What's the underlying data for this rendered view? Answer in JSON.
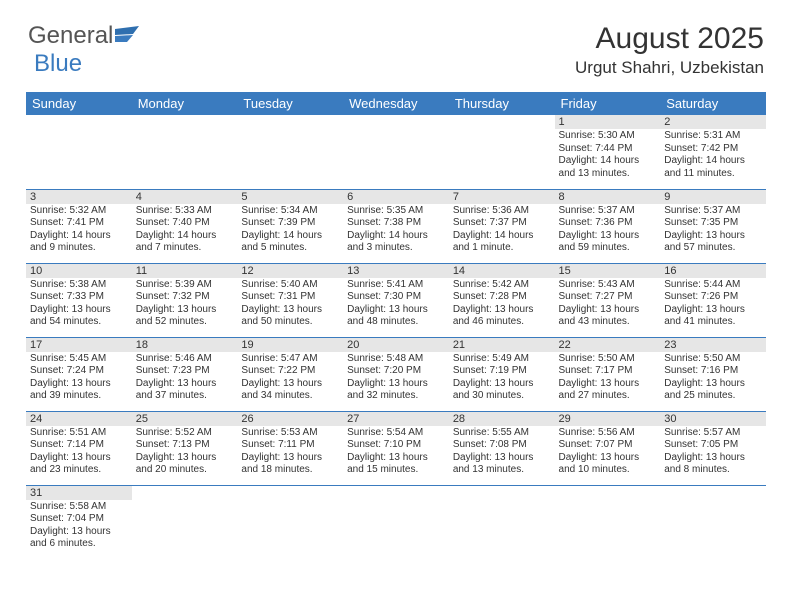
{
  "logo": {
    "text1": "General",
    "text2": "Blue"
  },
  "title": "August 2025",
  "location": "Urgut Shahri, Uzbekistan",
  "colors": {
    "header_bg": "#3a7bbf",
    "header_text": "#ffffff",
    "daynum_bg": "#e6e6e6",
    "cell_border": "#3a7bbf",
    "body_text": "#333333"
  },
  "weekdays": [
    "Sunday",
    "Monday",
    "Tuesday",
    "Wednesday",
    "Thursday",
    "Friday",
    "Saturday"
  ],
  "weeks": [
    [
      {
        "n": "",
        "sr": "",
        "ss": "",
        "dl": ""
      },
      {
        "n": "",
        "sr": "",
        "ss": "",
        "dl": ""
      },
      {
        "n": "",
        "sr": "",
        "ss": "",
        "dl": ""
      },
      {
        "n": "",
        "sr": "",
        "ss": "",
        "dl": ""
      },
      {
        "n": "",
        "sr": "",
        "ss": "",
        "dl": ""
      },
      {
        "n": "1",
        "sr": "Sunrise: 5:30 AM",
        "ss": "Sunset: 7:44 PM",
        "dl": "Daylight: 14 hours and 13 minutes."
      },
      {
        "n": "2",
        "sr": "Sunrise: 5:31 AM",
        "ss": "Sunset: 7:42 PM",
        "dl": "Daylight: 14 hours and 11 minutes."
      }
    ],
    [
      {
        "n": "3",
        "sr": "Sunrise: 5:32 AM",
        "ss": "Sunset: 7:41 PM",
        "dl": "Daylight: 14 hours and 9 minutes."
      },
      {
        "n": "4",
        "sr": "Sunrise: 5:33 AM",
        "ss": "Sunset: 7:40 PM",
        "dl": "Daylight: 14 hours and 7 minutes."
      },
      {
        "n": "5",
        "sr": "Sunrise: 5:34 AM",
        "ss": "Sunset: 7:39 PM",
        "dl": "Daylight: 14 hours and 5 minutes."
      },
      {
        "n": "6",
        "sr": "Sunrise: 5:35 AM",
        "ss": "Sunset: 7:38 PM",
        "dl": "Daylight: 14 hours and 3 minutes."
      },
      {
        "n": "7",
        "sr": "Sunrise: 5:36 AM",
        "ss": "Sunset: 7:37 PM",
        "dl": "Daylight: 14 hours and 1 minute."
      },
      {
        "n": "8",
        "sr": "Sunrise: 5:37 AM",
        "ss": "Sunset: 7:36 PM",
        "dl": "Daylight: 13 hours and 59 minutes."
      },
      {
        "n": "9",
        "sr": "Sunrise: 5:37 AM",
        "ss": "Sunset: 7:35 PM",
        "dl": "Daylight: 13 hours and 57 minutes."
      }
    ],
    [
      {
        "n": "10",
        "sr": "Sunrise: 5:38 AM",
        "ss": "Sunset: 7:33 PM",
        "dl": "Daylight: 13 hours and 54 minutes."
      },
      {
        "n": "11",
        "sr": "Sunrise: 5:39 AM",
        "ss": "Sunset: 7:32 PM",
        "dl": "Daylight: 13 hours and 52 minutes."
      },
      {
        "n": "12",
        "sr": "Sunrise: 5:40 AM",
        "ss": "Sunset: 7:31 PM",
        "dl": "Daylight: 13 hours and 50 minutes."
      },
      {
        "n": "13",
        "sr": "Sunrise: 5:41 AM",
        "ss": "Sunset: 7:30 PM",
        "dl": "Daylight: 13 hours and 48 minutes."
      },
      {
        "n": "14",
        "sr": "Sunrise: 5:42 AM",
        "ss": "Sunset: 7:28 PM",
        "dl": "Daylight: 13 hours and 46 minutes."
      },
      {
        "n": "15",
        "sr": "Sunrise: 5:43 AM",
        "ss": "Sunset: 7:27 PM",
        "dl": "Daylight: 13 hours and 43 minutes."
      },
      {
        "n": "16",
        "sr": "Sunrise: 5:44 AM",
        "ss": "Sunset: 7:26 PM",
        "dl": "Daylight: 13 hours and 41 minutes."
      }
    ],
    [
      {
        "n": "17",
        "sr": "Sunrise: 5:45 AM",
        "ss": "Sunset: 7:24 PM",
        "dl": "Daylight: 13 hours and 39 minutes."
      },
      {
        "n": "18",
        "sr": "Sunrise: 5:46 AM",
        "ss": "Sunset: 7:23 PM",
        "dl": "Daylight: 13 hours and 37 minutes."
      },
      {
        "n": "19",
        "sr": "Sunrise: 5:47 AM",
        "ss": "Sunset: 7:22 PM",
        "dl": "Daylight: 13 hours and 34 minutes."
      },
      {
        "n": "20",
        "sr": "Sunrise: 5:48 AM",
        "ss": "Sunset: 7:20 PM",
        "dl": "Daylight: 13 hours and 32 minutes."
      },
      {
        "n": "21",
        "sr": "Sunrise: 5:49 AM",
        "ss": "Sunset: 7:19 PM",
        "dl": "Daylight: 13 hours and 30 minutes."
      },
      {
        "n": "22",
        "sr": "Sunrise: 5:50 AM",
        "ss": "Sunset: 7:17 PM",
        "dl": "Daylight: 13 hours and 27 minutes."
      },
      {
        "n": "23",
        "sr": "Sunrise: 5:50 AM",
        "ss": "Sunset: 7:16 PM",
        "dl": "Daylight: 13 hours and 25 minutes."
      }
    ],
    [
      {
        "n": "24",
        "sr": "Sunrise: 5:51 AM",
        "ss": "Sunset: 7:14 PM",
        "dl": "Daylight: 13 hours and 23 minutes."
      },
      {
        "n": "25",
        "sr": "Sunrise: 5:52 AM",
        "ss": "Sunset: 7:13 PM",
        "dl": "Daylight: 13 hours and 20 minutes."
      },
      {
        "n": "26",
        "sr": "Sunrise: 5:53 AM",
        "ss": "Sunset: 7:11 PM",
        "dl": "Daylight: 13 hours and 18 minutes."
      },
      {
        "n": "27",
        "sr": "Sunrise: 5:54 AM",
        "ss": "Sunset: 7:10 PM",
        "dl": "Daylight: 13 hours and 15 minutes."
      },
      {
        "n": "28",
        "sr": "Sunrise: 5:55 AM",
        "ss": "Sunset: 7:08 PM",
        "dl": "Daylight: 13 hours and 13 minutes."
      },
      {
        "n": "29",
        "sr": "Sunrise: 5:56 AM",
        "ss": "Sunset: 7:07 PM",
        "dl": "Daylight: 13 hours and 10 minutes."
      },
      {
        "n": "30",
        "sr": "Sunrise: 5:57 AM",
        "ss": "Sunset: 7:05 PM",
        "dl": "Daylight: 13 hours and 8 minutes."
      }
    ],
    [
      {
        "n": "31",
        "sr": "Sunrise: 5:58 AM",
        "ss": "Sunset: 7:04 PM",
        "dl": "Daylight: 13 hours and 6 minutes."
      },
      {
        "n": "",
        "sr": "",
        "ss": "",
        "dl": ""
      },
      {
        "n": "",
        "sr": "",
        "ss": "",
        "dl": ""
      },
      {
        "n": "",
        "sr": "",
        "ss": "",
        "dl": ""
      },
      {
        "n": "",
        "sr": "",
        "ss": "",
        "dl": ""
      },
      {
        "n": "",
        "sr": "",
        "ss": "",
        "dl": ""
      },
      {
        "n": "",
        "sr": "",
        "ss": "",
        "dl": ""
      }
    ]
  ]
}
